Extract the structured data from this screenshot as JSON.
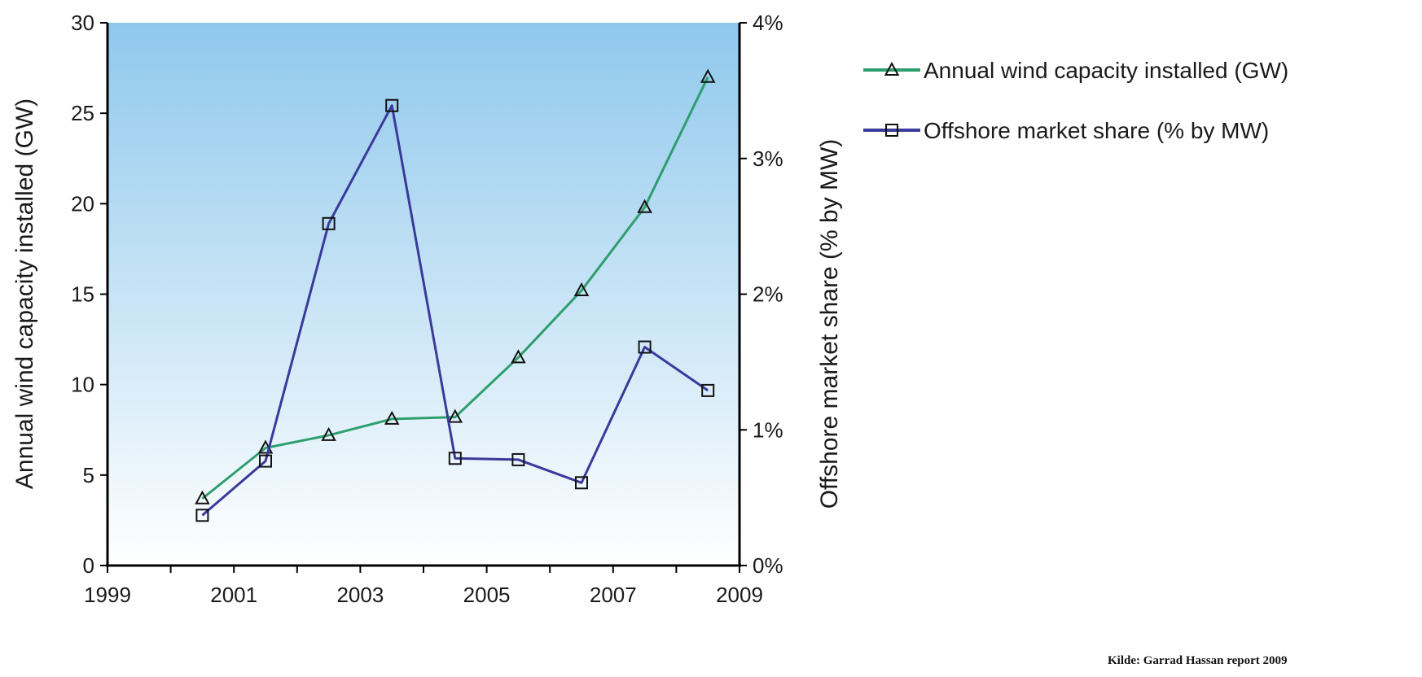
{
  "chart_data": {
    "type": "line",
    "x": [
      2000.5,
      2001.5,
      2002.5,
      2003.5,
      2004.5,
      2005.5,
      2006.5,
      2007.5,
      2008.5
    ],
    "xticks": [
      "1999",
      "2001",
      "2003",
      "2005",
      "2007",
      "2009"
    ],
    "xlim": [
      1999,
      2009
    ],
    "ylabel": "Annual wind capacity installed (GW)",
    "ylim": [
      0,
      30
    ],
    "yticks": [
      "0",
      "5",
      "10",
      "15",
      "20",
      "25",
      "30"
    ],
    "y2label": "Offshore market share (% by MW)",
    "y2lim": [
      0,
      4
    ],
    "y2ticks": [
      "0%",
      "1%",
      "2%",
      "3%",
      "4%"
    ],
    "series": [
      {
        "name": "Annual wind capacity installed (GW)",
        "axis": "left",
        "marker": "triangle",
        "color": "#2e9e6e",
        "values": [
          3.7,
          6.5,
          7.2,
          8.1,
          8.2,
          11.5,
          15.2,
          19.8,
          27.0
        ]
      },
      {
        "name": "Offshore market share (% by MW)",
        "axis": "right",
        "marker": "square",
        "color": "#3a3a9a",
        "values": [
          0.37,
          0.77,
          2.52,
          3.39,
          0.79,
          0.78,
          0.61,
          1.61,
          1.29
        ]
      }
    ],
    "legend_position": "right",
    "background_gradient": [
      "#8fc8ec",
      "#ffffff"
    ]
  },
  "source_note": "Kilde: Garrad Hassan report 2009"
}
